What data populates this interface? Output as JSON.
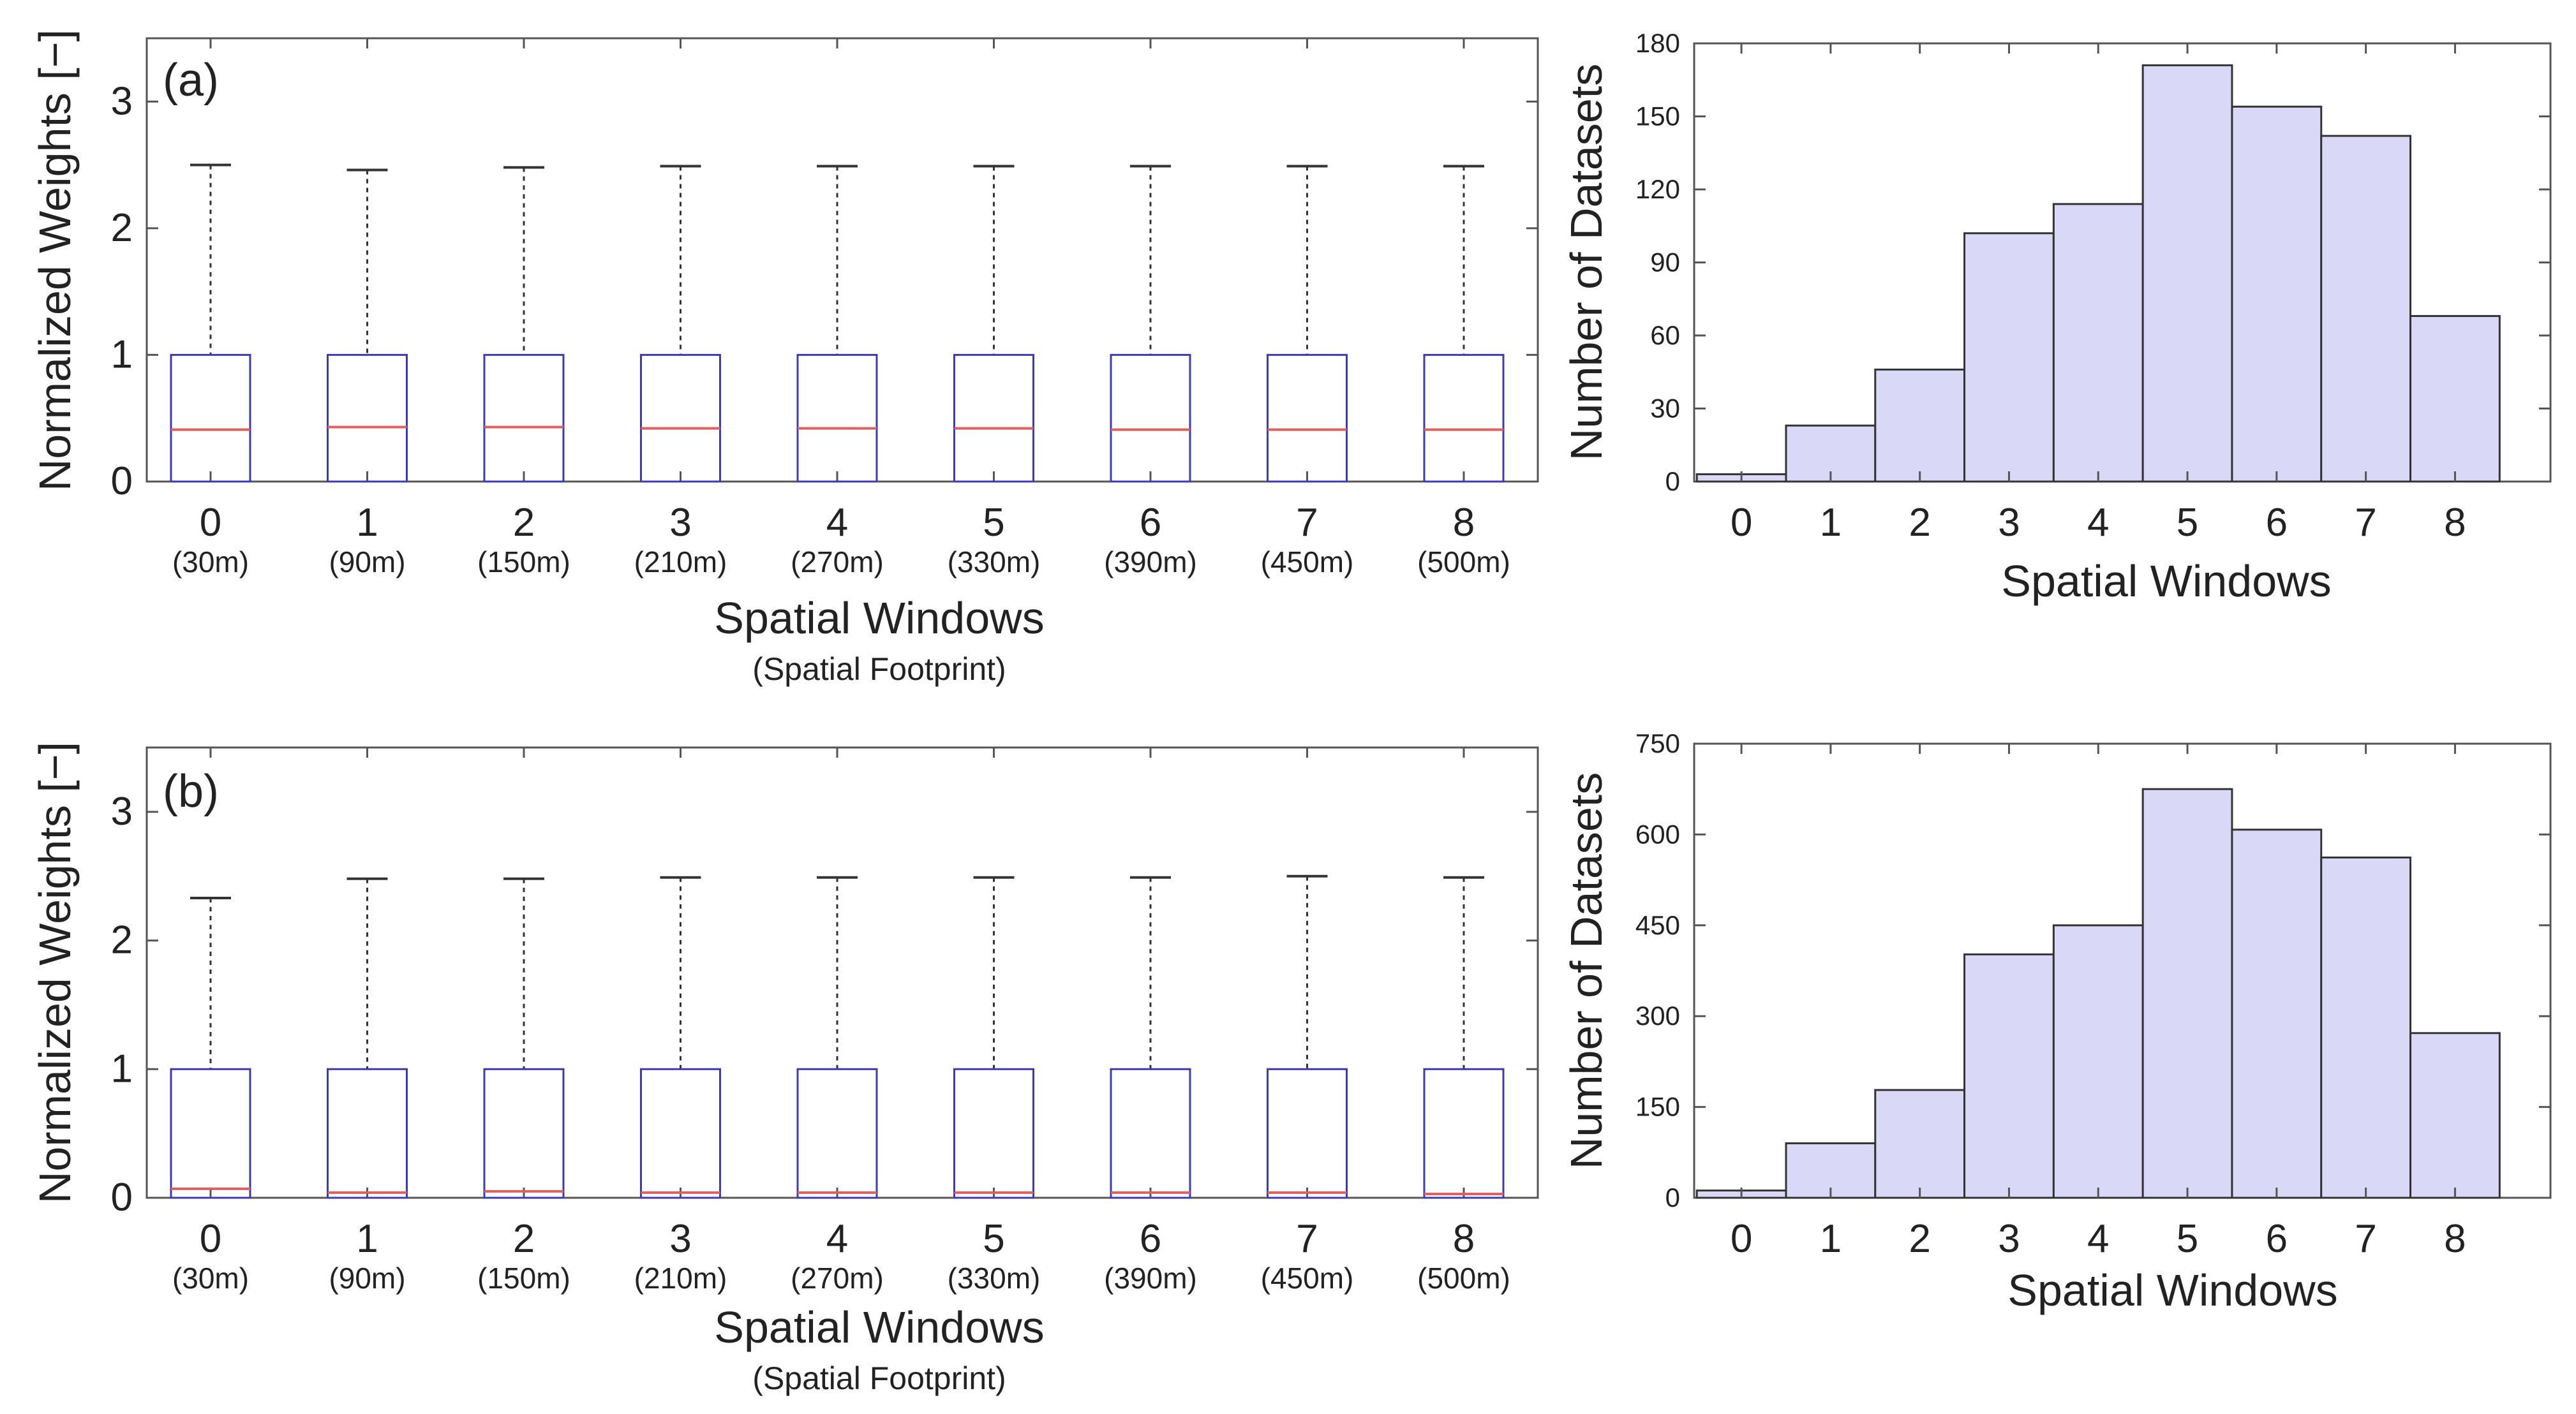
{
  "chart_data": [
    {
      "type": "boxplot",
      "panel_label": "(a)",
      "ylabel": "Normalized Weights [−]",
      "xlabel": "Spatial Windows",
      "xsublabel": "(Spatial Footprint)",
      "ylim": [
        0,
        3.5
      ],
      "yticks": [
        0,
        1,
        2,
        3
      ],
      "categories": [
        "0",
        "1",
        "2",
        "3",
        "4",
        "5",
        "6",
        "7",
        "8"
      ],
      "footprints": [
        "(30m)",
        "(90m)",
        "(150m)",
        "(210m)",
        "(270m)",
        "(330m)",
        "(390m)",
        "(450m)",
        "(500m)"
      ],
      "boxes": [
        {
          "min": 0,
          "q1": 0,
          "median": 0.41,
          "q3": 1.0,
          "max": 2.5
        },
        {
          "min": 0,
          "q1": 0,
          "median": 0.43,
          "q3": 1.0,
          "max": 2.46
        },
        {
          "min": 0,
          "q1": 0,
          "median": 0.43,
          "q3": 1.0,
          "max": 2.48
        },
        {
          "min": 0,
          "q1": 0,
          "median": 0.42,
          "q3": 1.0,
          "max": 2.49
        },
        {
          "min": 0,
          "q1": 0,
          "median": 0.42,
          "q3": 1.0,
          "max": 2.49
        },
        {
          "min": 0,
          "q1": 0,
          "median": 0.42,
          "q3": 1.0,
          "max": 2.49
        },
        {
          "min": 0,
          "q1": 0,
          "median": 0.41,
          "q3": 1.0,
          "max": 2.49
        },
        {
          "min": 0,
          "q1": 0,
          "median": 0.41,
          "q3": 1.0,
          "max": 2.49
        },
        {
          "min": 0,
          "q1": 0,
          "median": 0.41,
          "q3": 1.0,
          "max": 2.49
        }
      ],
      "colors": {
        "box": "#3b3bb5",
        "median": "#e06060",
        "whisker": "#333333"
      }
    },
    {
      "type": "bar",
      "xlabel": "Spatial Windows",
      "ylabel": "Number of Datasets",
      "ylim": [
        0,
        180
      ],
      "yticks": [
        0,
        30,
        60,
        90,
        120,
        150,
        180
      ],
      "categories": [
        "0",
        "1",
        "2",
        "3",
        "4",
        "5",
        "6",
        "7",
        "8"
      ],
      "values": [
        3,
        23,
        46,
        102,
        114,
        171,
        154,
        142,
        68
      ],
      "colors": {
        "fill": "#d9d9f7",
        "stroke": "#333333"
      }
    },
    {
      "type": "boxplot",
      "panel_label": "(b)",
      "ylabel": "Normalized Weights [−]",
      "xlabel": "Spatial Windows",
      "xsublabel": "(Spatial Footprint)",
      "ylim": [
        0,
        3.5
      ],
      "yticks": [
        0,
        1,
        2,
        3
      ],
      "categories": [
        "0",
        "1",
        "2",
        "3",
        "4",
        "5",
        "6",
        "7",
        "8"
      ],
      "footprints": [
        "(30m)",
        "(90m)",
        "(150m)",
        "(210m)",
        "(270m)",
        "(330m)",
        "(390m)",
        "(450m)",
        "(500m)"
      ],
      "boxes": [
        {
          "min": 0,
          "q1": 0,
          "median": 0.07,
          "q3": 1.0,
          "max": 2.33
        },
        {
          "min": 0,
          "q1": 0,
          "median": 0.04,
          "q3": 1.0,
          "max": 2.48
        },
        {
          "min": 0,
          "q1": 0,
          "median": 0.05,
          "q3": 1.0,
          "max": 2.48
        },
        {
          "min": 0,
          "q1": 0,
          "median": 0.04,
          "q3": 1.0,
          "max": 2.49
        },
        {
          "min": 0,
          "q1": 0,
          "median": 0.04,
          "q3": 1.0,
          "max": 2.49
        },
        {
          "min": 0,
          "q1": 0,
          "median": 0.04,
          "q3": 1.0,
          "max": 2.49
        },
        {
          "min": 0,
          "q1": 0,
          "median": 0.04,
          "q3": 1.0,
          "max": 2.49
        },
        {
          "min": 0,
          "q1": 0,
          "median": 0.04,
          "q3": 1.0,
          "max": 2.5
        },
        {
          "min": 0,
          "q1": 0,
          "median": 0.03,
          "q3": 1.0,
          "max": 2.49
        }
      ],
      "colors": {
        "box": "#3b3bb5",
        "median": "#e06060",
        "whisker": "#333333"
      }
    },
    {
      "type": "bar",
      "xlabel": "Spatial Windows",
      "ylabel": "Number of Datasets",
      "ylim": [
        0,
        750
      ],
      "yticks": [
        0,
        150,
        300,
        450,
        600,
        750
      ],
      "categories": [
        "0",
        "1",
        "2",
        "3",
        "4",
        "5",
        "6",
        "7",
        "8"
      ],
      "values": [
        12,
        90,
        178,
        402,
        450,
        675,
        608,
        562,
        272
      ],
      "colors": {
        "fill": "#d9d9f7",
        "stroke": "#333333"
      }
    }
  ]
}
